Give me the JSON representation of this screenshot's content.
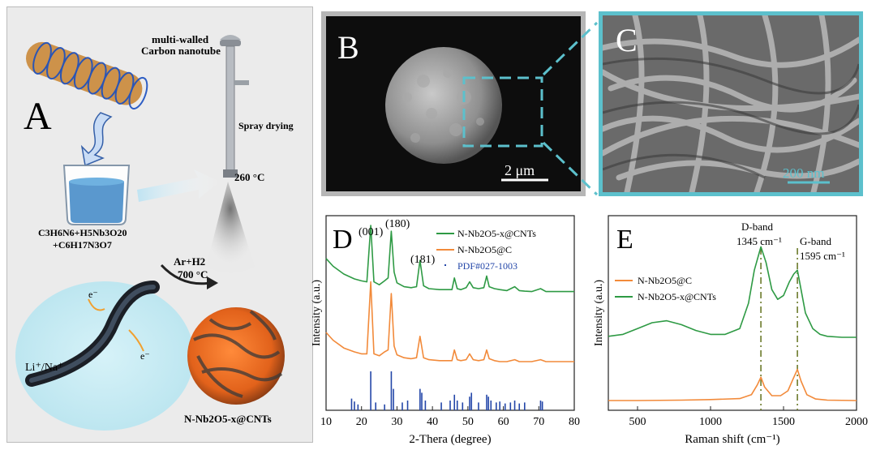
{
  "panel_a": {
    "letter": "A",
    "nanotube_label_1": "multi-walled",
    "nanotube_label_2": "Carbon nanotube",
    "spray_label": "Spray drying",
    "temp_label": "260 °C",
    "precursor_line_1": "C3H6N6+H5Nb3O20",
    "precursor_line_2": "+C6H17N3O7",
    "gas_label": "Ar+H2",
    "anneal_temp": "700 °C",
    "electron_1": "e⁻",
    "electron_2": "e⁻",
    "ion_label": "Li⁺/Na⁺",
    "product_label": "N-Nb2O5-x@CNTs"
  },
  "panel_b": {
    "letter": "B",
    "scale_bar": "2 μm"
  },
  "panel_c": {
    "letter": "C",
    "scale_bar": "200 nm"
  },
  "chart_data": [
    {
      "type": "line",
      "panel": "D",
      "xlabel": "2-Thera (degree)",
      "ylabel": "Intensity (a.u.)",
      "xlim": [
        10,
        80
      ],
      "xticks": [
        10,
        20,
        30,
        40,
        50,
        60,
        70,
        80
      ],
      "legend": [
        "N-Nb2O5-x@CNTs",
        "N-Nb2O5@C",
        "PDF#027-1003"
      ],
      "legend_position": "top-right",
      "annotations": [
        "(001)",
        "(180)",
        "(181)"
      ],
      "series": [
        {
          "name": "N-Nb2O5-x@CNTs",
          "color": "#2e9a44",
          "x": [
            10,
            12,
            15,
            18,
            20,
            21.5,
            22.6,
            23.5,
            25,
            26.5,
            27.5,
            28.4,
            29.2,
            30,
            32,
            34,
            35.5,
            36.5,
            37.5,
            39,
            42,
            44,
            45.5,
            46.2,
            47,
            48,
            49.5,
            50.5,
            51.5,
            53,
            54.5,
            55.3,
            56,
            57.5,
            59,
            61,
            63.2,
            64.5,
            66,
            68,
            70.5,
            72,
            75,
            78,
            80
          ],
          "y": [
            0.78,
            0.74,
            0.7,
            0.675,
            0.665,
            0.66,
            0.95,
            0.66,
            0.645,
            0.665,
            0.68,
            0.92,
            0.71,
            0.655,
            0.635,
            0.63,
            0.635,
            0.77,
            0.64,
            0.625,
            0.62,
            0.62,
            0.62,
            0.68,
            0.625,
            0.62,
            0.63,
            0.66,
            0.63,
            0.625,
            0.63,
            0.69,
            0.635,
            0.625,
            0.62,
            0.615,
            0.635,
            0.615,
            0.612,
            0.61,
            0.625,
            0.61,
            0.61,
            0.61,
            0.61
          ]
        },
        {
          "name": "N-Nb2O5@C",
          "color": "#f28a3a",
          "x": [
            10,
            12,
            15,
            18,
            20,
            21.5,
            22.6,
            23.5,
            25,
            26.5,
            27.5,
            28.4,
            29.2,
            30,
            32,
            34,
            35.5,
            36.5,
            37.5,
            39,
            42,
            44,
            45.5,
            46.2,
            47,
            48,
            49.5,
            50.5,
            51.5,
            53,
            54.5,
            55.3,
            56,
            57.5,
            59,
            61,
            63.2,
            64.5,
            66,
            68,
            70.5,
            72,
            75,
            78,
            80
          ],
          "y": [
            0.4,
            0.36,
            0.32,
            0.3,
            0.29,
            0.29,
            0.66,
            0.29,
            0.28,
            0.3,
            0.31,
            0.6,
            0.33,
            0.285,
            0.27,
            0.265,
            0.27,
            0.38,
            0.27,
            0.26,
            0.255,
            0.255,
            0.255,
            0.31,
            0.26,
            0.255,
            0.26,
            0.29,
            0.26,
            0.255,
            0.26,
            0.31,
            0.265,
            0.255,
            0.25,
            0.25,
            0.26,
            0.25,
            0.25,
            0.25,
            0.26,
            0.25,
            0.25,
            0.25,
            0.25
          ]
        },
        {
          "name": "PDF#027-1003",
          "type": "sticks",
          "color": "#2346a8",
          "x": [
            17.2,
            18,
            19,
            22.6,
            24,
            26.5,
            28.4,
            29,
            31.5,
            33,
            36.5,
            37,
            38,
            42.5,
            45,
            46.2,
            47,
            48.5,
            50.5,
            51,
            53,
            55.3,
            55.8,
            56.5,
            58,
            59,
            60.5,
            62,
            63.2,
            64.5,
            66,
            70.5,
            71
          ],
          "y": [
            0.06,
            0.045,
            0.03,
            0.2,
            0.04,
            0.03,
            0.2,
            0.11,
            0.04,
            0.05,
            0.11,
            0.09,
            0.05,
            0.04,
            0.05,
            0.08,
            0.05,
            0.04,
            0.07,
            0.09,
            0.04,
            0.08,
            0.07,
            0.05,
            0.04,
            0.045,
            0.035,
            0.04,
            0.05,
            0.035,
            0.04,
            0.05,
            0.045
          ]
        }
      ]
    },
    {
      "type": "line",
      "panel": "E",
      "xlabel": "Raman shift (cm⁻¹)",
      "ylabel": "Intensity (a.u.)",
      "xlim": [
        300,
        2000
      ],
      "xticks": [
        500,
        1000,
        1500,
        2000
      ],
      "legend": [
        "N-Nb2O5@C",
        "N-Nb2O5-x@CNTs"
      ],
      "legend_position": "center-left",
      "annotations": [
        {
          "x": 1345,
          "label": "D-band",
          "value": "1345 cm⁻¹"
        },
        {
          "x": 1595,
          "label": "G-band",
          "value": "1595 cm⁻¹"
        }
      ],
      "series": [
        {
          "name": "N-Nb2O5-x@CNTs",
          "color": "#2e9a44",
          "x": [
            300,
            400,
            500,
            600,
            700,
            800,
            900,
            1000,
            1100,
            1200,
            1260,
            1300,
            1345,
            1380,
            1420,
            1460,
            1500,
            1540,
            1570,
            1595,
            1620,
            1650,
            1700,
            1750,
            1800,
            1900,
            2000
          ],
          "y": [
            0.38,
            0.39,
            0.42,
            0.45,
            0.46,
            0.44,
            0.41,
            0.39,
            0.39,
            0.42,
            0.55,
            0.72,
            0.84,
            0.76,
            0.62,
            0.57,
            0.59,
            0.66,
            0.7,
            0.72,
            0.62,
            0.5,
            0.42,
            0.39,
            0.38,
            0.375,
            0.375
          ]
        },
        {
          "name": "N-Nb2O5@C",
          "color": "#f28a3a",
          "x": [
            300,
            500,
            800,
            1000,
            1200,
            1280,
            1320,
            1345,
            1370,
            1420,
            1480,
            1530,
            1565,
            1595,
            1620,
            1660,
            1720,
            1800,
            2000
          ],
          "y": [
            0.05,
            0.05,
            0.052,
            0.055,
            0.06,
            0.08,
            0.13,
            0.17,
            0.12,
            0.075,
            0.075,
            0.1,
            0.16,
            0.21,
            0.15,
            0.08,
            0.058,
            0.052,
            0.05
          ]
        }
      ]
    }
  ]
}
